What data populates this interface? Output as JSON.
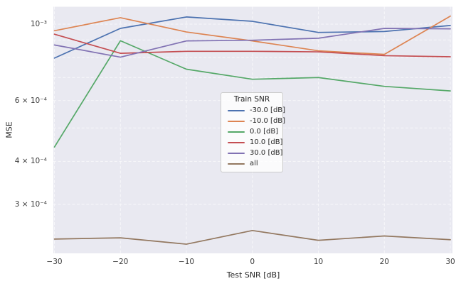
{
  "figure": {
    "background": "#ffffff",
    "plot_background": "#e9e9f1",
    "grid_color": "#f7f7fa",
    "text_color": "#262626"
  },
  "chart_data": {
    "type": "line",
    "title": "",
    "xlabel": "Test SNR [dB]",
    "ylabel": "MSE",
    "yscale": "log",
    "xlim": [
      -30.3,
      30.3
    ],
    "ylim": [
      0.000216,
      0.00112
    ],
    "grid": "on",
    "legend": {
      "title": "Train SNR",
      "position": "center"
    },
    "x": [
      -30,
      -20,
      -10,
      0,
      10,
      20,
      30
    ],
    "xtick_values": [
      -30,
      -20,
      -10,
      0,
      10,
      20,
      30
    ],
    "xtick_labels": [
      "−30",
      "−20",
      "−10",
      "0",
      "10",
      "20",
      "30"
    ],
    "ytick_values": [
      0.001,
      0.0006,
      0.0004,
      0.0003
    ],
    "ytick_labels": [
      "10⁻³",
      "6 × 10⁻⁴",
      "4 × 10⁻⁴",
      "3 × 10⁻⁴"
    ],
    "grid_y_values": [
      0.001,
      0.0009,
      0.0008,
      0.0007,
      0.0006,
      0.0005,
      0.0004,
      0.0003
    ],
    "series": [
      {
        "name": "-30.0 [dB]",
        "color": "#4c72b0",
        "values": [
          0.000797,
          0.000972,
          0.001049,
          0.001019,
          0.000946,
          0.000952,
          0.000991
        ]
      },
      {
        "name": "-10.0 [dB]",
        "color": "#dd8452",
        "values": [
          0.000957,
          0.001044,
          0.000949,
          0.000894,
          0.000837,
          0.000817,
          0.001055
        ]
      },
      {
        "name": "0.0 [dB]",
        "color": "#55a868",
        "values": [
          0.00044,
          0.000895,
          0.00074,
          0.000692,
          0.0007,
          0.00066,
          0.00064
        ]
      },
      {
        "name": "10.0 [dB]",
        "color": "#c44e52",
        "values": [
          0.000935,
          0.000823,
          0.000834,
          0.000834,
          0.000831,
          0.00081,
          0.000804
        ]
      },
      {
        "name": "30.0 [dB]",
        "color": "#8172b3",
        "values": [
          0.00087,
          0.000802,
          0.000894,
          0.000898,
          0.00091,
          0.000972,
          0.000969
        ]
      },
      {
        "name": "all",
        "color": "#937860",
        "values": [
          0.000238,
          0.00024,
          0.00023,
          0.000252,
          0.000236,
          0.000243,
          0.000237
        ]
      }
    ]
  }
}
